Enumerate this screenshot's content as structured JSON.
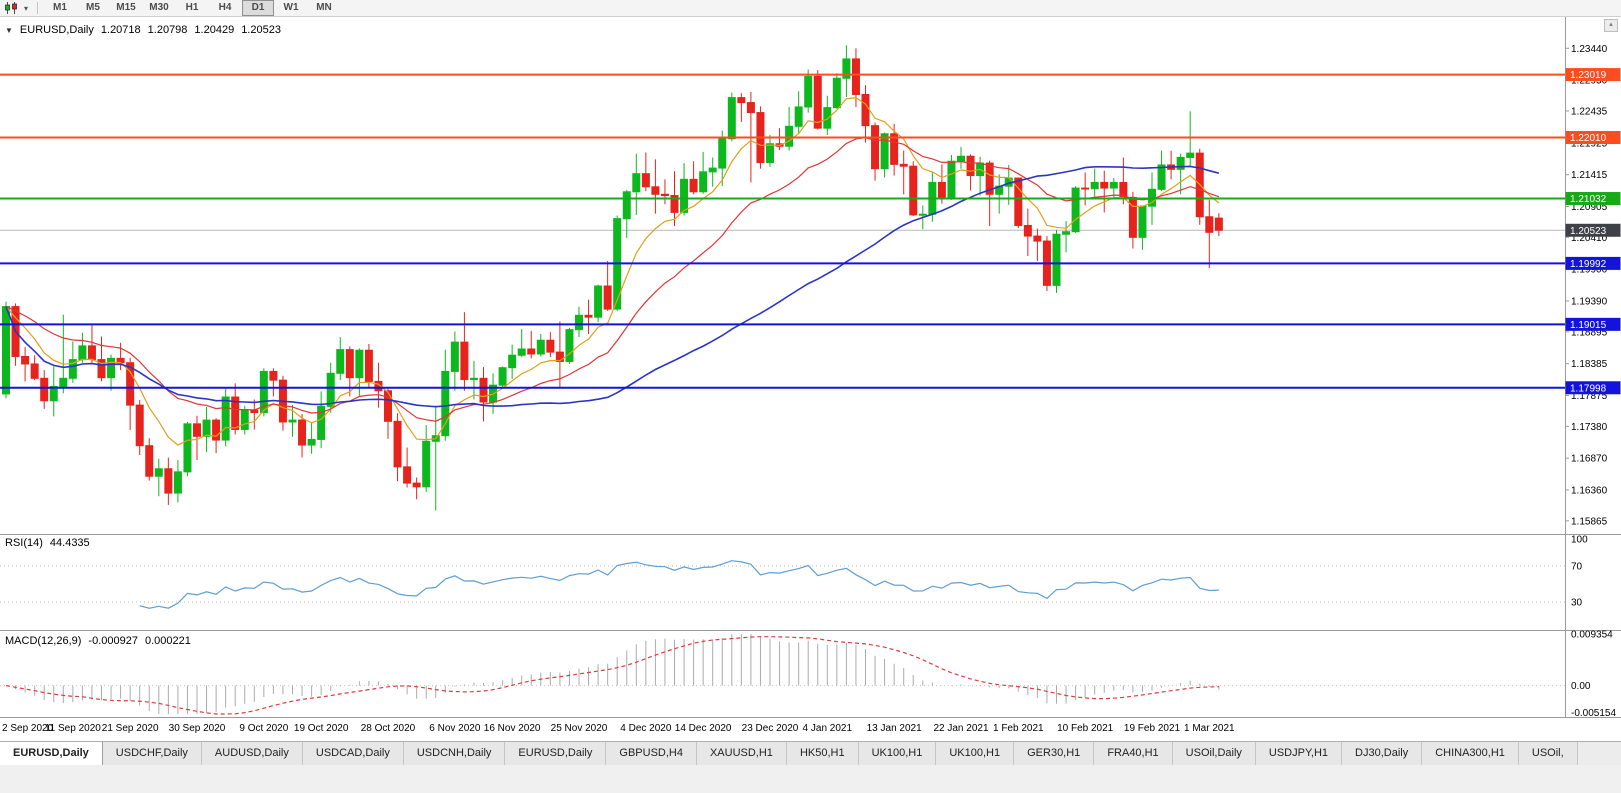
{
  "toolbar": {
    "timeframes": [
      {
        "label": "M1"
      },
      {
        "label": "M5"
      },
      {
        "label": "M15"
      },
      {
        "label": "M30"
      },
      {
        "label": "H1"
      },
      {
        "label": "H4"
      },
      {
        "label": "D1"
      },
      {
        "label": "W1"
      },
      {
        "label": "MN"
      }
    ],
    "active_timeframe": "D1"
  },
  "header": {
    "symbol": "EURUSD,Daily",
    "open": "1.20718",
    "high": "1.20798",
    "low": "1.20429",
    "close": "1.20523"
  },
  "indicators": {
    "rsi": {
      "name": "RSI(14)",
      "value": "44.4335"
    },
    "macd": {
      "name": "MACD(12,26,9)",
      "value": "-0.000927",
      "signal": "0.000221"
    }
  },
  "tabs": [
    {
      "label": "EURUSD,Daily",
      "active": true
    },
    {
      "label": "USDCHF,Daily"
    },
    {
      "label": "AUDUSD,Daily"
    },
    {
      "label": "USDCAD,Daily"
    },
    {
      "label": "USDCNH,Daily"
    },
    {
      "label": "EURUSD,Daily"
    },
    {
      "label": "GBPUSD,H4"
    },
    {
      "label": "XAUUSD,H1"
    },
    {
      "label": "HK50,H1"
    },
    {
      "label": "UK100,H1"
    },
    {
      "label": "UK100,H1"
    },
    {
      "label": "GER30,H1"
    },
    {
      "label": "FRA40,H1"
    },
    {
      "label": "USOil,Daily"
    },
    {
      "label": "USDJPY,H1"
    },
    {
      "label": "DJ30,Daily"
    },
    {
      "label": "CHINA300,H1"
    },
    {
      "label": "USOil,"
    }
  ],
  "chart_data": {
    "type": "candlestick",
    "title": "EURUSD,Daily",
    "symbol": "EURUSD",
    "timeframe": "Daily",
    "price_range": {
      "top": 1.2391,
      "bottom": 1.1567
    },
    "price_axis_ticks": [
      "1.23440",
      "1.22930",
      "1.22435",
      "1.21925",
      "1.21415",
      "1.20905",
      "1.20410",
      "1.19900",
      "1.19390",
      "1.18895",
      "1.18385",
      "1.17875",
      "1.17380",
      "1.16870",
      "1.16360",
      "1.15865"
    ],
    "date_labels": [
      {
        "label": "2 Sep 2020",
        "i": 0
      },
      {
        "label": "11 Sep 2020",
        "i": 7
      },
      {
        "label": "21 Sep 2020",
        "i": 13
      },
      {
        "label": "30 Sep 2020",
        "i": 20
      },
      {
        "label": "9 Oct 2020",
        "i": 27
      },
      {
        "label": "19 Oct 2020",
        "i": 33
      },
      {
        "label": "28 Oct 2020",
        "i": 40
      },
      {
        "label": "6 Nov 2020",
        "i": 47
      },
      {
        "label": "16 Nov 2020",
        "i": 53
      },
      {
        "label": "25 Nov 2020",
        "i": 60
      },
      {
        "label": "4 Dec 2020",
        "i": 67
      },
      {
        "label": "14 Dec 2020",
        "i": 73
      },
      {
        "label": "23 Dec 2020",
        "i": 80
      },
      {
        "label": "4 Jan 2021",
        "i": 86
      },
      {
        "label": "13 Jan 2021",
        "i": 93
      },
      {
        "label": "22 Jan 2021",
        "i": 100
      },
      {
        "label": "1 Feb 2021",
        "i": 106
      },
      {
        "label": "10 Feb 2021",
        "i": 113
      },
      {
        "label": "19 Feb 2021",
        "i": 120
      },
      {
        "label": "1 Mar 2021",
        "i": 126
      }
    ],
    "up_color": "#0db81f",
    "down_color": "#e6231c",
    "candles": [
      [
        1.179,
        1.1938,
        1.1783,
        1.193
      ],
      [
        1.193,
        1.1935,
        1.1835,
        1.185
      ],
      [
        1.185,
        1.1865,
        1.181,
        1.1838
      ],
      [
        1.1838,
        1.1852,
        1.1812,
        1.1815
      ],
      [
        1.1815,
        1.1828,
        1.1766,
        1.1779
      ],
      [
        1.1779,
        1.1834,
        1.1754,
        1.1802
      ],
      [
        1.1802,
        1.1917,
        1.1791,
        1.1815
      ],
      [
        1.1815,
        1.1874,
        1.1808,
        1.1845
      ],
      [
        1.1845,
        1.1888,
        1.184,
        1.1867
      ],
      [
        1.1867,
        1.19,
        1.1838,
        1.1845
      ],
      [
        1.1845,
        1.1882,
        1.181,
        1.1816
      ],
      [
        1.1816,
        1.1853,
        1.1795,
        1.1847
      ],
      [
        1.1847,
        1.1872,
        1.1828,
        1.184
      ],
      [
        1.184,
        1.1848,
        1.1732,
        1.1772
      ],
      [
        1.1772,
        1.178,
        1.1692,
        1.1707
      ],
      [
        1.1707,
        1.1719,
        1.1651,
        1.1658
      ],
      [
        1.1658,
        1.1686,
        1.1626,
        1.167
      ],
      [
        1.167,
        1.1688,
        1.1612,
        1.1631
      ],
      [
        1.1631,
        1.1684,
        1.1616,
        1.1665
      ],
      [
        1.1665,
        1.1745,
        1.1658,
        1.1742
      ],
      [
        1.1742,
        1.1755,
        1.1684,
        1.1722
      ],
      [
        1.1722,
        1.1769,
        1.1697,
        1.1748
      ],
      [
        1.1748,
        1.1751,
        1.1695,
        1.1716
      ],
      [
        1.1716,
        1.1798,
        1.1706,
        1.1785
      ],
      [
        1.1785,
        1.1807,
        1.1725,
        1.1733
      ],
      [
        1.1733,
        1.1771,
        1.1725,
        1.1764
      ],
      [
        1.1764,
        1.1781,
        1.1733,
        1.176
      ],
      [
        1.176,
        1.1831,
        1.1754,
        1.1826
      ],
      [
        1.1826,
        1.1831,
        1.1786,
        1.1812
      ],
      [
        1.1812,
        1.1819,
        1.1731,
        1.1745
      ],
      [
        1.1745,
        1.1772,
        1.1721,
        1.1748
      ],
      [
        1.1748,
        1.1758,
        1.1688,
        1.1708
      ],
      [
        1.1708,
        1.1745,
        1.1694,
        1.1717
      ],
      [
        1.1717,
        1.1794,
        1.1703,
        1.177
      ],
      [
        1.177,
        1.184,
        1.176,
        1.1823
      ],
      [
        1.1823,
        1.1881,
        1.1812,
        1.1861
      ],
      [
        1.1861,
        1.1866,
        1.1786,
        1.1816
      ],
      [
        1.1816,
        1.1863,
        1.1787,
        1.186
      ],
      [
        1.186,
        1.187,
        1.18,
        1.181
      ],
      [
        1.181,
        1.184,
        1.1768,
        1.1795
      ],
      [
        1.1795,
        1.18,
        1.1718,
        1.1746
      ],
      [
        1.1746,
        1.1759,
        1.165,
        1.1673
      ],
      [
        1.1673,
        1.1704,
        1.164,
        1.1647
      ],
      [
        1.1647,
        1.1656,
        1.1621,
        1.1641
      ],
      [
        1.1641,
        1.174,
        1.1633,
        1.1714
      ],
      [
        1.1714,
        1.1771,
        1.1603,
        1.1723
      ],
      [
        1.1723,
        1.1861,
        1.1715,
        1.1826
      ],
      [
        1.1826,
        1.189,
        1.1795,
        1.1873
      ],
      [
        1.1873,
        1.1921,
        1.1795,
        1.1813
      ],
      [
        1.1813,
        1.1843,
        1.1781,
        1.1815
      ],
      [
        1.1815,
        1.1833,
        1.1746,
        1.1777
      ],
      [
        1.1777,
        1.1823,
        1.1758,
        1.1804
      ],
      [
        1.1804,
        1.1834,
        1.1799,
        1.1832
      ],
      [
        1.1832,
        1.1869,
        1.1814,
        1.1852
      ],
      [
        1.1852,
        1.1894,
        1.1849,
        1.1862
      ],
      [
        1.1862,
        1.1891,
        1.1847,
        1.1854
      ],
      [
        1.1854,
        1.1886,
        1.185,
        1.1876
      ],
      [
        1.1876,
        1.1889,
        1.1849,
        1.1857
      ],
      [
        1.1857,
        1.1906,
        1.18,
        1.1842
      ],
      [
        1.1842,
        1.1896,
        1.1838,
        1.1893
      ],
      [
        1.1893,
        1.193,
        1.1881,
        1.1916
      ],
      [
        1.1916,
        1.1941,
        1.1886,
        1.1913
      ],
      [
        1.1913,
        1.1965,
        1.1905,
        1.1963
      ],
      [
        1.1963,
        1.2003,
        1.1923,
        1.1926
      ],
      [
        1.1926,
        1.2076,
        1.1923,
        1.2071
      ],
      [
        1.2071,
        1.2117,
        1.204,
        1.2114
      ],
      [
        1.2114,
        1.2175,
        1.2077,
        1.2143
      ],
      [
        1.2143,
        1.2177,
        1.2115,
        1.2122
      ],
      [
        1.2122,
        1.2166,
        1.2079,
        1.211
      ],
      [
        1.211,
        1.2134,
        1.2094,
        1.2108
      ],
      [
        1.2108,
        1.2147,
        1.2059,
        1.2081
      ],
      [
        1.2081,
        1.216,
        1.2076,
        1.2134
      ],
      [
        1.2134,
        1.2163,
        1.211,
        1.2114
      ],
      [
        1.2114,
        1.2178,
        1.2111,
        1.2146
      ],
      [
        1.2146,
        1.2169,
        1.2122,
        1.2152
      ],
      [
        1.2152,
        1.2212,
        1.2123,
        1.2199
      ],
      [
        1.2199,
        1.2273,
        1.2195,
        1.2265
      ],
      [
        1.2265,
        1.2272,
        1.2226,
        1.2257
      ],
      [
        1.2257,
        1.2274,
        1.2129,
        1.2241
      ],
      [
        1.2241,
        1.2251,
        1.2151,
        1.2161
      ],
      [
        1.2161,
        1.2205,
        1.2154,
        1.2191
      ],
      [
        1.2191,
        1.2216,
        1.2181,
        1.2187
      ],
      [
        1.2187,
        1.225,
        1.218,
        1.2219
      ],
      [
        1.2219,
        1.2275,
        1.2208,
        1.225
      ],
      [
        1.225,
        1.231,
        1.2241,
        1.2299
      ],
      [
        1.2299,
        1.2309,
        1.2214,
        1.2216
      ],
      [
        1.2216,
        1.2268,
        1.2205,
        1.2249
      ],
      [
        1.2249,
        1.2304,
        1.2247,
        1.2296
      ],
      [
        1.2296,
        1.2349,
        1.2266,
        1.2327
      ],
      [
        1.2327,
        1.2344,
        1.225,
        1.227
      ],
      [
        1.227,
        1.2285,
        1.2193,
        1.222
      ],
      [
        1.222,
        1.2225,
        1.2132,
        1.2151
      ],
      [
        1.2151,
        1.2209,
        1.2137,
        1.2207
      ],
      [
        1.2207,
        1.2223,
        1.214,
        1.2158
      ],
      [
        1.2158,
        1.218,
        1.211,
        1.2155
      ],
      [
        1.2155,
        1.2163,
        1.2075,
        1.2077
      ],
      [
        1.2077,
        1.2092,
        1.2054,
        1.2078
      ],
      [
        1.2078,
        1.2145,
        1.2066,
        1.2129
      ],
      [
        1.2129,
        1.2158,
        1.2095,
        1.2105
      ],
      [
        1.2105,
        1.2173,
        1.2101,
        1.2163
      ],
      [
        1.2163,
        1.2186,
        1.2151,
        1.2171
      ],
      [
        1.2171,
        1.2174,
        1.2116,
        1.214
      ],
      [
        1.214,
        1.217,
        1.2108,
        1.216
      ],
      [
        1.216,
        1.2164,
        1.2059,
        1.211
      ],
      [
        1.211,
        1.2142,
        1.2079,
        1.2123
      ],
      [
        1.2123,
        1.2157,
        1.2093,
        1.2136
      ],
      [
        1.2136,
        1.2137,
        1.2056,
        1.206
      ],
      [
        1.206,
        1.2087,
        1.2011,
        1.2043
      ],
      [
        1.2043,
        1.2055,
        1.2003,
        1.2035
      ],
      [
        1.2035,
        1.2043,
        1.1955,
        1.1964
      ],
      [
        1.1964,
        1.2053,
        1.1952,
        1.2046
      ],
      [
        1.2046,
        1.2067,
        1.2017,
        1.205
      ],
      [
        1.205,
        1.2123,
        1.2048,
        1.212
      ],
      [
        1.212,
        1.2145,
        1.2092,
        1.2119
      ],
      [
        1.2119,
        1.2151,
        1.2106,
        1.2129
      ],
      [
        1.2129,
        1.2148,
        1.2081,
        1.212
      ],
      [
        1.212,
        1.2136,
        1.2104,
        1.2129
      ],
      [
        1.2129,
        1.2169,
        1.2094,
        1.2105
      ],
      [
        1.2105,
        1.2114,
        1.2023,
        1.2041
      ],
      [
        1.2041,
        1.2092,
        1.2021,
        1.2091
      ],
      [
        1.2091,
        1.2145,
        1.2061,
        1.2118
      ],
      [
        1.2118,
        1.218,
        1.2115,
        1.2157
      ],
      [
        1.2157,
        1.218,
        1.2134,
        1.215
      ],
      [
        1.215,
        1.2175,
        1.211,
        1.2169
      ],
      [
        1.2169,
        1.2243,
        1.2155,
        1.2176
      ],
      [
        1.2176,
        1.2183,
        1.2061,
        1.2074
      ],
      [
        1.2074,
        1.2101,
        1.1992,
        1.2049
      ],
      [
        1.20718,
        1.20798,
        1.20429,
        1.20523
      ]
    ],
    "moving_averages": [
      {
        "name": "fast-ma",
        "type": "ema",
        "period": 8,
        "color": "#e0a01a",
        "width": 1.2
      },
      {
        "name": "mid-ma",
        "type": "ema",
        "period": 21,
        "color": "#e23535",
        "width": 1.2
      },
      {
        "name": "slow-ma",
        "type": "sma",
        "period": 50,
        "color": "#2a35c8",
        "width": 1.6
      }
    ],
    "levels": [
      {
        "label": "1.23019",
        "value": 1.23019,
        "color": "#fb4d20",
        "type": "resistance"
      },
      {
        "label": "1.22010",
        "value": 1.2201,
        "color": "#fb4d20",
        "type": "resistance"
      },
      {
        "label": "1.21032",
        "value": 1.21032,
        "color": "#18a818",
        "type": "pivot"
      },
      {
        "label": "1.19992",
        "value": 1.19992,
        "color": "#1313dc",
        "type": "support"
      },
      {
        "label": "1.19015",
        "value": 1.19015,
        "color": "#1313dc",
        "type": "support"
      },
      {
        "label": "1.17998",
        "value": 1.17998,
        "color": "#1313dc",
        "type": "support"
      }
    ],
    "current_price": {
      "label": "1.20523",
      "value": 1.20523,
      "tag_color": "#3f4149",
      "line_color": "#b8b8b8"
    },
    "rsi": {
      "period": 14,
      "color": "#5e9fd4",
      "range": {
        "max": 100,
        "min": 0
      },
      "levels": [
        {
          "label": "100",
          "value": 100
        },
        {
          "label": "70",
          "value": 70
        },
        {
          "label": "30",
          "value": 30
        }
      ]
    },
    "macd": {
      "fast": 12,
      "slow": 26,
      "signal": 9,
      "histogram_color": "#ababab",
      "signal_color": "#dd3c3c",
      "range": {
        "max": 0.009354,
        "min": -0.005154
      },
      "axis_labels": [
        {
          "label": "0.009354",
          "value": 0.009354
        },
        {
          "label": "0.00",
          "value": 0
        },
        {
          "label": "-0.005154",
          "value": -0.005154
        }
      ]
    }
  }
}
